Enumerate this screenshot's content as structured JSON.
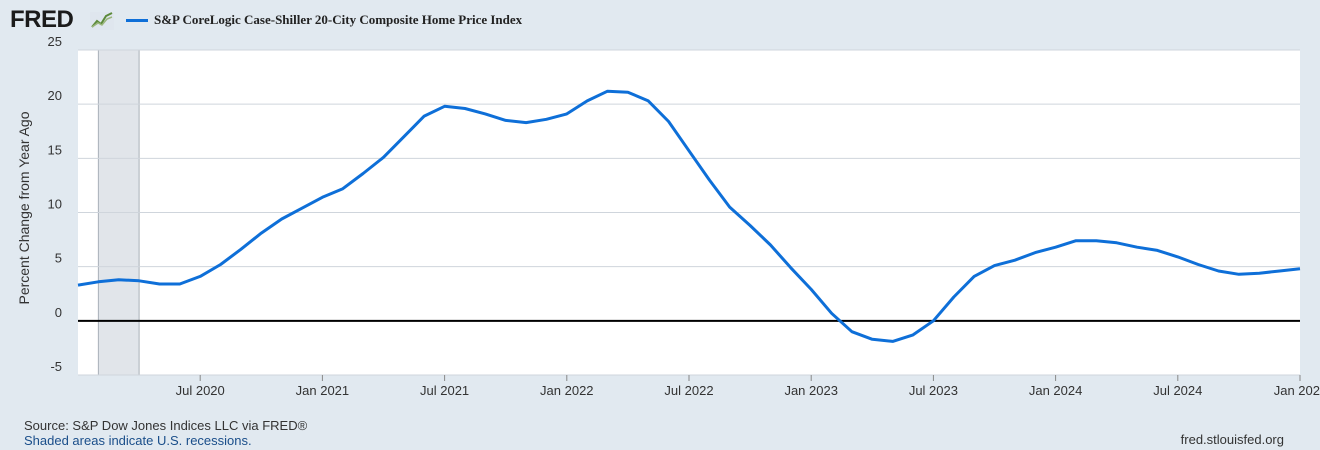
{
  "logo_text": "FRED",
  "logo_icon": "chart-line-icon",
  "source_line1": "Source: S&P Dow Jones Indices LLC via FRED®",
  "source_line2": "Shaded areas indicate U.S. recessions.",
  "site": "fred.stlouisfed.org",
  "colors": {
    "line": "#0e6fd8",
    "background": "#e1e9f0",
    "plot": "#ffffff",
    "recession": "#e1e5ea",
    "grid": "#cfd5dc"
  },
  "chart_data": {
    "type": "line",
    "title": "",
    "xlabel": "",
    "ylabel": "Percent Change from Year Ago",
    "ylim": [
      -5,
      25
    ],
    "yticks": [
      25,
      20,
      15,
      10,
      5,
      0,
      -5
    ],
    "xticks": [
      "Jul 2020",
      "Jan 2021",
      "Jul 2021",
      "Jan 2022",
      "Jul 2022",
      "Jan 2023",
      "Jul 2023",
      "Jan 2024",
      "Jul 2024",
      "Jan 202"
    ],
    "xlim": [
      "2020-01",
      "2025-01"
    ],
    "recessions": [
      [
        "2020-02",
        "2020-04"
      ]
    ],
    "legend": "top-left",
    "grid": true,
    "series": [
      {
        "name": "S&P CoreLogic Case-Shiller 20-City Composite Home Price Index",
        "x": [
          "2020-01",
          "2020-02",
          "2020-03",
          "2020-04",
          "2020-05",
          "2020-06",
          "2020-07",
          "2020-08",
          "2020-09",
          "2020-10",
          "2020-11",
          "2020-12",
          "2021-01",
          "2021-02",
          "2021-03",
          "2021-04",
          "2021-05",
          "2021-06",
          "2021-07",
          "2021-08",
          "2021-09",
          "2021-10",
          "2021-11",
          "2021-12",
          "2022-01",
          "2022-02",
          "2022-03",
          "2022-04",
          "2022-05",
          "2022-06",
          "2022-07",
          "2022-08",
          "2022-09",
          "2022-10",
          "2022-11",
          "2022-12",
          "2023-01",
          "2023-02",
          "2023-03",
          "2023-04",
          "2023-05",
          "2023-06",
          "2023-07",
          "2023-08",
          "2023-09",
          "2023-10",
          "2023-11",
          "2023-12",
          "2024-01",
          "2024-02",
          "2024-03",
          "2024-04",
          "2024-05",
          "2024-06",
          "2024-07",
          "2024-08",
          "2024-09",
          "2024-10",
          "2024-11",
          "2024-12",
          "2025-01"
        ],
        "values": [
          3.3,
          3.6,
          3.8,
          3.7,
          3.4,
          3.4,
          4.1,
          5.2,
          6.6,
          8.1,
          9.4,
          10.4,
          11.4,
          12.2,
          13.6,
          15.1,
          17.0,
          18.9,
          19.8,
          19.6,
          19.1,
          18.5,
          18.3,
          18.6,
          19.1,
          20.3,
          21.2,
          21.1,
          20.3,
          18.4,
          15.7,
          13.0,
          10.5,
          8.8,
          7.0,
          4.9,
          2.9,
          0.7,
          -1.0,
          -1.7,
          -1.9,
          -1.3,
          0.0,
          2.2,
          4.1,
          5.1,
          5.6,
          6.3,
          6.8,
          7.4,
          7.4,
          7.2,
          6.8,
          6.5,
          5.9,
          5.2,
          4.6,
          4.3,
          4.4,
          4.6,
          4.8
        ]
      }
    ]
  }
}
